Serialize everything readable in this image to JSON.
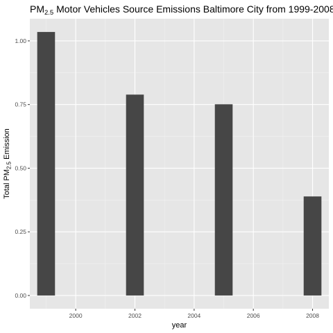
{
  "chart_data": {
    "type": "bar",
    "title": {
      "prefix": "PM",
      "subscript": "2.5",
      "suffix": " Motor Vehicles Source Emissions Baltimore City from 1999-2008"
    },
    "xlabel": "year",
    "ylabel": {
      "prefix": "Total PM",
      "subscript": "2.5",
      "suffix": " Emission"
    },
    "x": [
      1999,
      2002,
      2005,
      2008
    ],
    "values": [
      1.035,
      0.789,
      0.751,
      0.389
    ],
    "xlim": [
      1998.45,
      2008.55
    ],
    "ylim": [
      -0.052,
      1.087
    ],
    "x_ticks": [
      2000,
      2002,
      2004,
      2006,
      2008
    ],
    "x_tick_labels": [
      "2000",
      "2002",
      "2004",
      "2006",
      "2008"
    ],
    "y_ticks": [
      0,
      0.25,
      0.5,
      0.75,
      1.0
    ],
    "y_tick_labels": [
      "0.00",
      "0.25",
      "0.50",
      "0.75",
      "1.00"
    ],
    "bar_width_years": 0.6,
    "grid": true,
    "colors": {
      "bar": "#464646",
      "panel": "#e6e6e6",
      "grid_major": "#ffffff",
      "grid_minor": "#f2f2f2",
      "tick": "#333333"
    }
  }
}
